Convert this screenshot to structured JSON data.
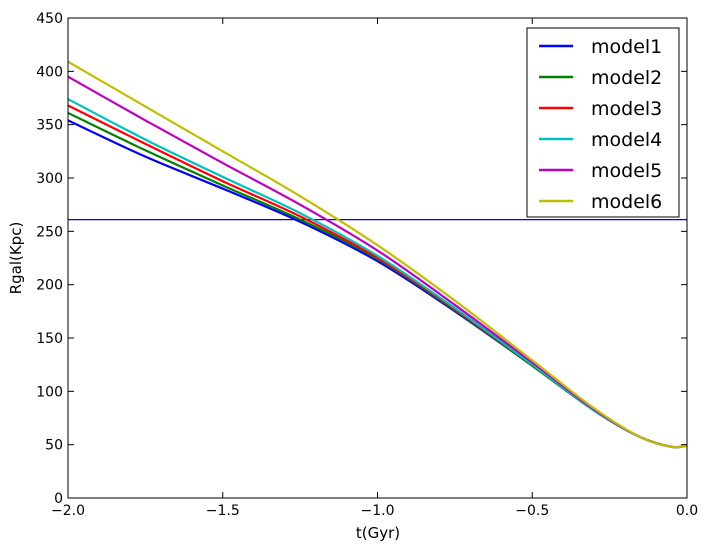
{
  "chart_data": {
    "type": "line",
    "title": "",
    "xlabel": "t(Gyr)",
    "ylabel": "Rgal(Kpc)",
    "xlim": [
      -2.0,
      0.0
    ],
    "ylim": [
      0,
      450
    ],
    "grid": false,
    "legend": "top-right",
    "x_ticks": [
      -2.0,
      -1.5,
      -1.0,
      -0.5,
      0.0
    ],
    "x_tick_labels": [
      "−2.0",
      "−1.5",
      "−1.0",
      "−0.5",
      "0.0"
    ],
    "y_ticks": [
      0,
      50,
      100,
      150,
      200,
      250,
      300,
      350,
      400,
      450
    ],
    "y_tick_labels": [
      "0",
      "50",
      "100",
      "150",
      "200",
      "250",
      "300",
      "350",
      "400",
      "450"
    ],
    "x": [
      -2.0,
      -1.75,
      -1.5,
      -1.25,
      -1.0,
      -0.75,
      -0.5,
      -0.3,
      -0.15,
      -0.05,
      0.0
    ],
    "series": [
      {
        "name": "model1",
        "color": "#0000ff",
        "values": [
          354,
          320,
          290,
          259,
          222,
          175,
          124,
          82,
          57,
          48,
          49
        ]
      },
      {
        "name": "model2",
        "color": "#008000",
        "values": [
          361,
          326,
          293,
          261,
          224,
          176,
          124,
          82,
          57,
          48,
          49
        ]
      },
      {
        "name": "model3",
        "color": "#ff0000",
        "values": [
          368,
          332,
          297,
          264,
          225,
          177,
          125,
          82,
          57,
          48,
          49
        ]
      },
      {
        "name": "model4",
        "color": "#00bfbf",
        "values": [
          374,
          336,
          301,
          267,
          227,
          178,
          125,
          82,
          57,
          48,
          49
        ]
      },
      {
        "name": "model5",
        "color": "#bf00bf",
        "values": [
          395,
          354,
          314,
          275,
          232,
          181,
          127,
          83,
          57,
          48,
          49
        ]
      },
      {
        "name": "model6",
        "color": "#bfbf00",
        "values": [
          409,
          367,
          325,
          283,
          237,
          185,
          129,
          84,
          57,
          48,
          49
        ]
      }
    ],
    "reference_line": {
      "y": 261,
      "color": "#0000ff"
    }
  }
}
